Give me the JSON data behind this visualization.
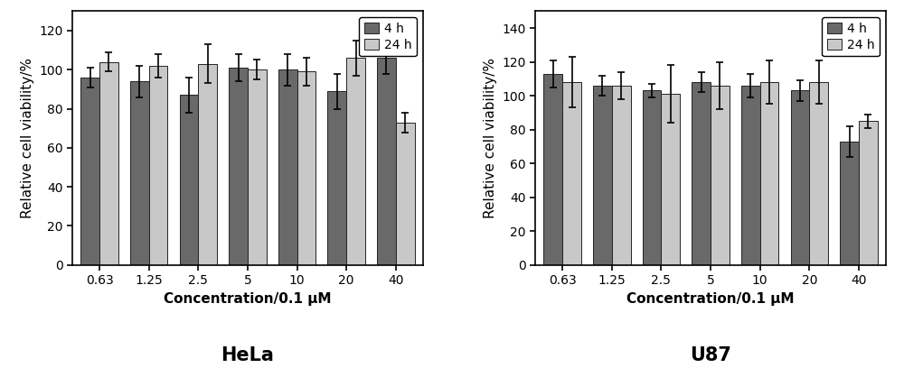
{
  "categories": [
    "0.63",
    "1.25",
    "2.5",
    "5",
    "10",
    "20",
    "40"
  ],
  "hela": {
    "bar_4h": [
      96,
      94,
      87,
      101,
      100,
      89,
      106
    ],
    "bar_24h": [
      104,
      102,
      103,
      100,
      99,
      106,
      73
    ],
    "err_4h": [
      5,
      8,
      9,
      7,
      8,
      9,
      8
    ],
    "err_24h": [
      5,
      6,
      10,
      5,
      7,
      9,
      5
    ],
    "ylim": [
      0,
      130
    ],
    "yticks": [
      0,
      20,
      40,
      60,
      80,
      100,
      120
    ],
    "title": "HeLa"
  },
  "u87": {
    "bar_4h": [
      113,
      106,
      103,
      108,
      106,
      103,
      73
    ],
    "bar_24h": [
      108,
      106,
      101,
      106,
      108,
      108,
      85
    ],
    "err_4h": [
      8,
      6,
      4,
      6,
      7,
      6,
      9
    ],
    "err_24h": [
      15,
      8,
      17,
      14,
      13,
      13,
      4
    ],
    "ylim": [
      0,
      150
    ],
    "yticks": [
      0,
      20,
      40,
      60,
      80,
      100,
      120,
      140
    ],
    "title": "U87"
  },
  "color_4h": "#696969",
  "color_24h": "#c8c8c8",
  "bar_width": 0.38,
  "xlabel": "Concentration/0.1 μM",
  "ylabel": "Relative cell viability/%",
  "legend_labels": [
    "4 h",
    "24 h"
  ],
  "title_fontsize": 15,
  "label_fontsize": 11,
  "tick_fontsize": 10,
  "legend_fontsize": 10,
  "edge_color": "#222222",
  "error_color": "black",
  "error_capsize": 3,
  "error_linewidth": 1.2
}
